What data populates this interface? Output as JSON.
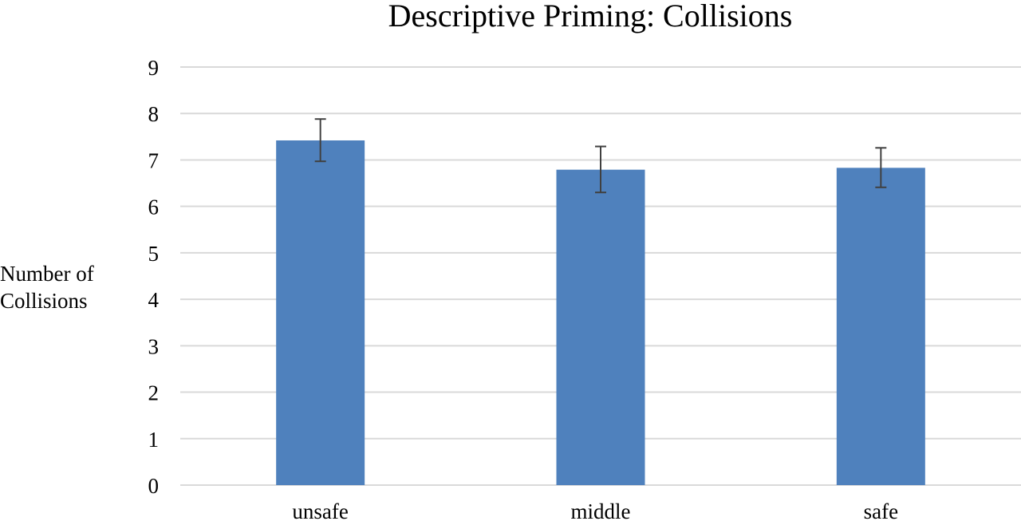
{
  "chart_data": {
    "type": "bar",
    "title": "Descriptive Priming: Collisions",
    "xlabel": "",
    "ylabel": "Number of\nCollisions",
    "categories": [
      "unsafe",
      "middle",
      "safe"
    ],
    "values": [
      7.42,
      6.79,
      6.83
    ],
    "error_bars": {
      "upper": [
        7.88,
        7.29,
        7.26
      ],
      "lower": [
        6.97,
        6.3,
        6.41
      ]
    },
    "ylim": [
      0,
      9
    ],
    "yticks": [
      "0",
      "1",
      "2",
      "3",
      "4",
      "5",
      "6",
      "7",
      "8",
      "9"
    ],
    "grid": true,
    "legend": "none",
    "colors": {
      "bar": "#4F81BD",
      "grid": "#D9D9D9",
      "error_bar": "#404040"
    }
  }
}
